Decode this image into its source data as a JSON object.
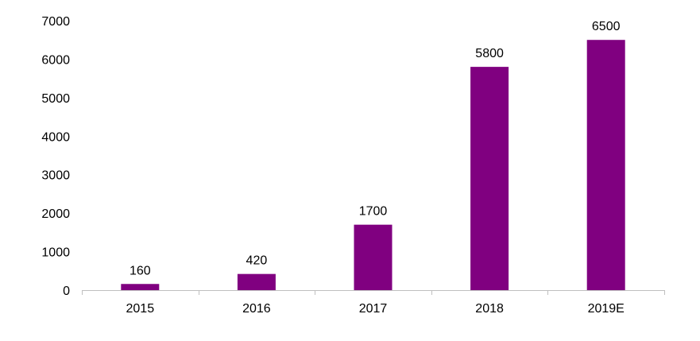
{
  "chart_data": {
    "type": "bar",
    "title": "",
    "xlabel": "",
    "ylabel": "",
    "categories": [
      "2015",
      "2016",
      "2017",
      "2018",
      "2019E"
    ],
    "values": [
      160,
      420,
      1700,
      5800,
      6500
    ],
    "data_labels": [
      "160",
      "420",
      "1700",
      "5800",
      "6500"
    ],
    "ylim": [
      0,
      7000
    ],
    "yticks": [
      0,
      1000,
      2000,
      3000,
      4000,
      5000,
      6000,
      7000
    ],
    "ytick_labels": [
      "0",
      "1000",
      "2000",
      "3000",
      "4000",
      "5000",
      "6000",
      "7000"
    ],
    "bar_color": "#800080",
    "axis_color": "#bfbfbf",
    "text_color": "#000000",
    "grid": false,
    "legend": "none"
  }
}
